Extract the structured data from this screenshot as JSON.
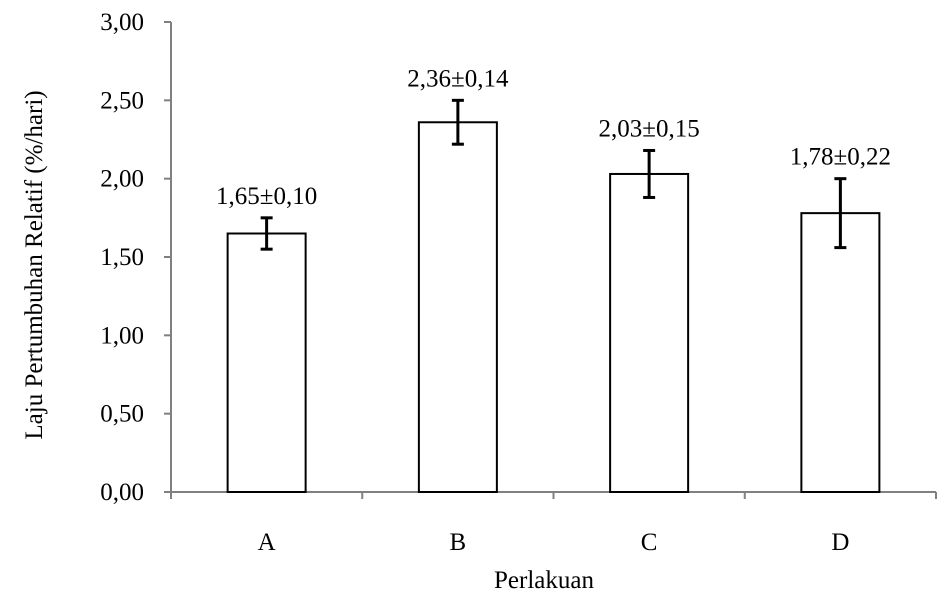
{
  "chart_data": {
    "type": "bar",
    "title": "",
    "xlabel": "Perlakuan",
    "ylabel": "Laju Pertumbuhan Relatif (%/hari)",
    "categories": [
      "A",
      "B",
      "C",
      "D"
    ],
    "values": [
      1.65,
      2.36,
      2.03,
      1.78
    ],
    "errors": [
      0.1,
      0.14,
      0.15,
      0.22
    ],
    "data_labels": [
      "1,65±0,10",
      "2,36±0,14",
      "2,03±0,15",
      "1,78±0,22"
    ],
    "ylim": [
      0,
      3
    ],
    "yticks": [
      0,
      0.5,
      1.0,
      1.5,
      2.0,
      2.5,
      3.0
    ],
    "ytick_labels": [
      "0,00",
      "0,50",
      "1,00",
      "1,50",
      "2,00",
      "2,50",
      "3,00"
    ],
    "grid": false,
    "legend": "none",
    "bar_fill": "#ffffff",
    "bar_stroke": "#000000",
    "axis_color": "#808080"
  }
}
